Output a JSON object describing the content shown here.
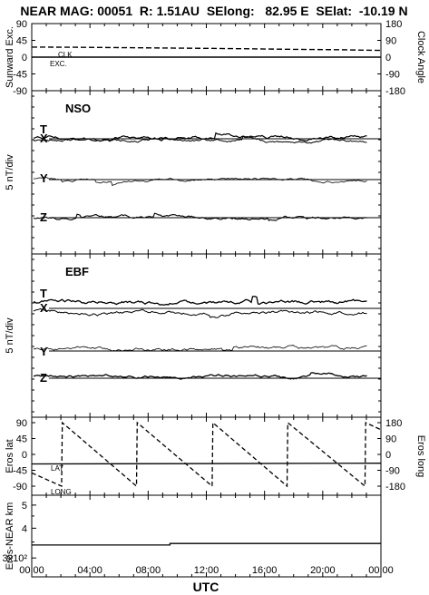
{
  "header": {
    "title": "NEAR MAG: 00051  R: 1.51AU  SElong:   82.95 E  SElat:  -10.19 N"
  },
  "chart_data": {
    "type": "line",
    "xlabel": "UTC",
    "x_ticks": [
      "00:00",
      "04:00",
      "08:00",
      "12:00",
      "16:00",
      "20:00",
      "00:00"
    ],
    "x_range_hours": [
      0,
      24
    ],
    "panels": [
      {
        "name": "sunward",
        "ylabel_left": "Sunward Exc.",
        "ylabel_right": "Clock Angle",
        "ylim_left": [
          -90,
          90
        ],
        "ylim_right": [
          -180,
          180
        ],
        "ticks_left": [
          "90",
          "45",
          "0",
          "-45",
          "-90"
        ],
        "ticks_right": [
          "180",
          "90",
          "0",
          "-90",
          "-180"
        ],
        "labels": {
          "clk": "CLK",
          "exc": "EXC."
        },
        "series": [
          {
            "name": "CLK",
            "style": "dashed",
            "x": [
              0,
              3,
              6,
              9,
              12,
              15,
              18,
              21,
              24
            ],
            "values": [
              27,
              26.5,
              25.5,
              24.5,
              23.5,
              22.5,
              21,
              20,
              18
            ]
          },
          {
            "name": "EXC.",
            "style": "solid",
            "x": [
              0,
              24
            ],
            "values": [
              0,
              0
            ]
          }
        ]
      },
      {
        "name": "NSO",
        "panel_label": "NSO",
        "ylabel": "5 nT/div",
        "components": [
          {
            "label": "T",
            "baseline": true
          },
          {
            "label": "X",
            "baseline": false
          },
          {
            "label": "Y",
            "baseline": true
          },
          {
            "label": "Z",
            "baseline": true
          }
        ]
      },
      {
        "name": "EBF",
        "panel_label": "EBF",
        "ylabel": "5 nT/div",
        "components": [
          {
            "label": "T",
            "baseline": false
          },
          {
            "label": "X",
            "baseline": true
          },
          {
            "label": "Y",
            "baseline": true
          },
          {
            "label": "Z",
            "baseline": true
          }
        ]
      },
      {
        "name": "eros-angles",
        "ylabel_left": "Eros lat",
        "ylabel_right": "Eros long",
        "ylim_left": [
          -90,
          90
        ],
        "ylim_right": [
          -180,
          180
        ],
        "ticks_left": [
          "90",
          "45",
          "0",
          "-45",
          "-90"
        ],
        "ticks_right": [
          "180",
          "90",
          "0",
          "-90",
          "-180"
        ],
        "labels": {
          "lat": "LAT",
          "long": "LONG"
        },
        "series": [
          {
            "name": "LONG",
            "style": "dashed",
            "axis": "right",
            "x": [
              0,
              2.05,
              2.1,
              7.2,
              7.25,
              12.4,
              12.45,
              17.55,
              17.6,
              22.9,
              22.95,
              24
            ],
            "values": [
              -105,
              -180,
              180,
              -180,
              180,
              -180,
              180,
              -180,
              180,
              -180,
              180,
              140
            ]
          },
          {
            "name": "LAT",
            "style": "solid",
            "axis": "left",
            "x": [
              0,
              24
            ],
            "values": [
              -27,
              -25
            ]
          }
        ]
      },
      {
        "name": "eros-distance",
        "ylabel": "Eros-NEAR km",
        "yscale": "log",
        "ticks_left": [
          "5",
          "4",
          "3x10²"
        ],
        "series": [
          {
            "name": "distance",
            "style": "solid",
            "x": [
              0,
              9.5,
              9.5,
              24
            ],
            "values": [
              340,
              340,
              345,
              345
            ]
          }
        ]
      }
    ]
  }
}
